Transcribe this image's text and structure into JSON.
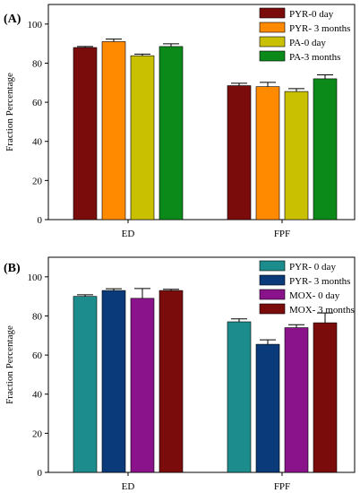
{
  "chart_data": [
    {
      "type": "bar",
      "panel_label": "(A)",
      "ylabel": "Fraction Percentage",
      "ylim": [
        0,
        110
      ],
      "yticks": [
        0,
        20,
        40,
        60,
        80,
        100
      ],
      "categories": [
        "ED",
        "FPF"
      ],
      "legend_position": "top-right",
      "series": [
        {
          "name": "PYR-0 day",
          "color": "#7b0c0c",
          "values": [
            88.0,
            68.5
          ],
          "errors": [
            0.5,
            1.2
          ]
        },
        {
          "name": "PYR- 3 months",
          "color": "#ff8a00",
          "values": [
            91.0,
            68.0
          ],
          "errors": [
            1.3,
            2.2
          ]
        },
        {
          "name": "PA-0 day",
          "color": "#c8c000",
          "values": [
            83.8,
            65.5
          ],
          "errors": [
            0.8,
            1.5
          ]
        },
        {
          "name": "PA-3 months",
          "color": "#0b8a1a",
          "values": [
            88.5,
            72.0
          ],
          "errors": [
            1.4,
            2.0
          ]
        }
      ]
    },
    {
      "type": "bar",
      "panel_label": "(B)",
      "ylabel": "Fraction Percentage",
      "ylim": [
        0,
        110
      ],
      "yticks": [
        0,
        20,
        40,
        60,
        80,
        100
      ],
      "categories": [
        "ED",
        "FPF"
      ],
      "legend_position": "top-right",
      "series": [
        {
          "name": "PYR- 0 day",
          "color": "#1c8c8c",
          "values": [
            90.0,
            77.0
          ],
          "errors": [
            0.8,
            1.5
          ]
        },
        {
          "name": "PYR- 3 months",
          "color": "#0a3a7a",
          "values": [
            93.0,
            65.5
          ],
          "errors": [
            0.9,
            2.3
          ]
        },
        {
          "name": "MOX- 0 day",
          "color": "#8a128a",
          "values": [
            89.0,
            74.0
          ],
          "errors": [
            5.0,
            1.5
          ]
        },
        {
          "name": "MOX- 3 months",
          "color": "#7b0c0c",
          "values": [
            93.0,
            76.5
          ],
          "errors": [
            0.6,
            5.0
          ]
        }
      ]
    }
  ]
}
